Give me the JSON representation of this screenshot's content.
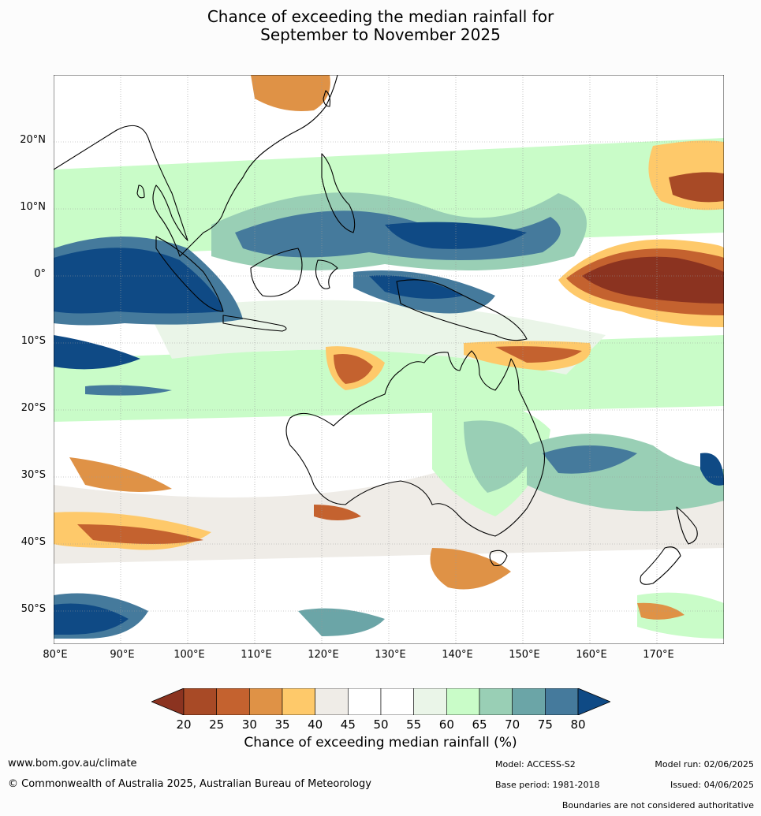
{
  "title_line1": "Chance of exceeding the median rainfall for",
  "title_line2": "September to November 2025",
  "map": {
    "lat_labels": [
      "20°N",
      "10°N",
      "0°",
      "10°S",
      "20°S",
      "30°S",
      "40°S",
      "50°S"
    ],
    "lon_labels": [
      "80°E",
      "90°E",
      "100°E",
      "110°E",
      "120°E",
      "130°E",
      "140°E",
      "150°E",
      "160°E",
      "170°E"
    ]
  },
  "colorbar": {
    "ticks": [
      "20",
      "25",
      "30",
      "35",
      "40",
      "45",
      "50",
      "55",
      "60",
      "65",
      "70",
      "75",
      "80"
    ],
    "colors": [
      "#a84a26",
      "#c4622f",
      "#df9246",
      "#fec96a",
      "#efece7",
      "#ffffff",
      "#ffffff",
      "#eaf5e8",
      "#c9fcc8",
      "#99cfb5",
      "#6ba5a7",
      "#457a9c"
    ],
    "under_color": "#8b3320",
    "over_color": "#0f4a85",
    "title": "Chance of exceeding median rainfall (%)"
  },
  "footer": {
    "website": "www.bom.gov.au/climate",
    "copyright": "© Commonwealth of Australia 2025, Australian Bureau of Meteorology",
    "model": "Model: ACCESS-S2",
    "base_period": "Base period: 1981-2018",
    "model_run": "Model run: 02/06/2025",
    "issued": "Issued: 04/06/2025",
    "boundaries": "Boundaries are not considered authoritative"
  }
}
